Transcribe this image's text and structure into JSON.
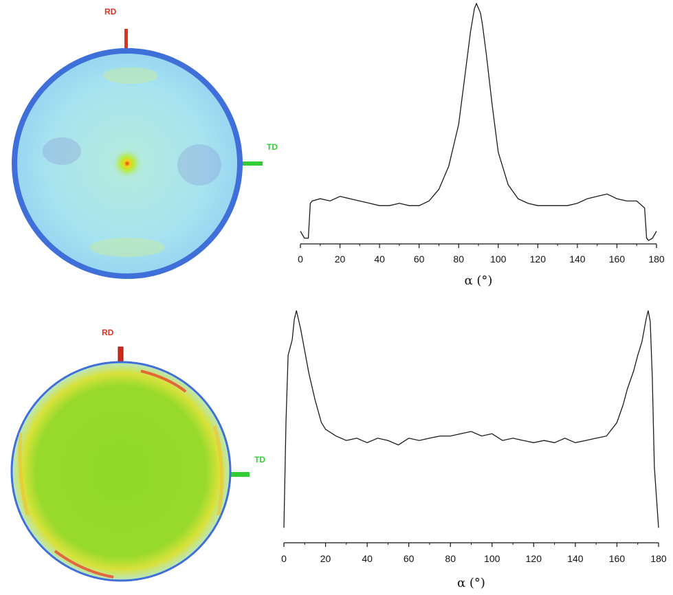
{
  "colors": {
    "rd_marker": "#e0301e",
    "td_marker": "#33cc33",
    "rd_text": "#e0301e",
    "td_text": "#33cc33",
    "pole_top_fill": "#a8e6ea",
    "pole_top_rim": "#3f6fd9",
    "pole_bottom_fill": "#8fd82a",
    "pole_bottom_rim": "#3f6fd9",
    "line": "#1a1a1a"
  },
  "pole_figures": [
    {
      "rd_label": "RD",
      "td_label": "TD",
      "style": "near-uniform with central intensity"
    },
    {
      "rd_label": "RD",
      "td_label": "TD",
      "style": "uniform with rim intensity"
    }
  ],
  "chart_data": [
    {
      "type": "line",
      "xlabel": "α (°)",
      "ylabel": "",
      "xlim": [
        0,
        180
      ],
      "xticks": [
        0,
        20,
        40,
        60,
        80,
        100,
        120,
        140,
        160,
        180
      ],
      "yticks_shown": false,
      "series": [
        {
          "x": [
            0,
            2,
            4,
            5,
            6,
            10,
            15,
            20,
            25,
            30,
            35,
            40,
            45,
            50,
            55,
            60,
            65,
            70,
            75,
            80,
            83,
            86,
            88,
            89,
            90,
            91,
            92,
            94,
            97,
            100,
            105,
            110,
            115,
            120,
            125,
            130,
            135,
            140,
            145,
            150,
            155,
            160,
            165,
            170,
            174,
            175,
            176,
            178,
            180
          ],
          "y": [
            0.04,
            0.01,
            0.01,
            0.16,
            0.17,
            0.18,
            0.17,
            0.19,
            0.18,
            0.17,
            0.16,
            0.15,
            0.15,
            0.16,
            0.15,
            0.15,
            0.17,
            0.22,
            0.32,
            0.5,
            0.7,
            0.9,
            1.0,
            1.02,
            1.0,
            0.98,
            0.93,
            0.8,
            0.58,
            0.38,
            0.24,
            0.18,
            0.16,
            0.15,
            0.15,
            0.15,
            0.15,
            0.16,
            0.18,
            0.19,
            0.2,
            0.18,
            0.17,
            0.17,
            0.14,
            0.01,
            0.0,
            0.01,
            0.04
          ]
        }
      ]
    },
    {
      "type": "line",
      "xlabel": "α (°)",
      "ylabel": "",
      "xlim": [
        0,
        180
      ],
      "xticks": [
        0,
        20,
        40,
        60,
        80,
        100,
        120,
        140,
        160,
        180
      ],
      "yticks_shown": false,
      "series": [
        {
          "x": [
            0,
            1,
            2,
            4,
            5,
            6,
            8,
            10,
            12,
            15,
            18,
            20,
            25,
            30,
            35,
            40,
            45,
            50,
            55,
            60,
            65,
            70,
            75,
            80,
            85,
            90,
            95,
            100,
            105,
            110,
            115,
            120,
            125,
            130,
            135,
            140,
            145,
            150,
            155,
            160,
            163,
            165,
            168,
            170,
            172,
            174,
            175,
            176,
            177,
            178,
            180
          ],
          "y": [
            0.03,
            0.5,
            0.8,
            0.87,
            0.96,
            1.0,
            0.92,
            0.82,
            0.72,
            0.6,
            0.5,
            0.47,
            0.44,
            0.42,
            0.43,
            0.41,
            0.43,
            0.42,
            0.4,
            0.43,
            0.42,
            0.43,
            0.44,
            0.44,
            0.45,
            0.46,
            0.44,
            0.45,
            0.42,
            0.43,
            0.42,
            0.41,
            0.42,
            0.41,
            0.43,
            0.41,
            0.42,
            0.43,
            0.44,
            0.5,
            0.58,
            0.65,
            0.73,
            0.8,
            0.86,
            0.96,
            1.0,
            0.95,
            0.7,
            0.3,
            0.03
          ]
        }
      ]
    }
  ]
}
